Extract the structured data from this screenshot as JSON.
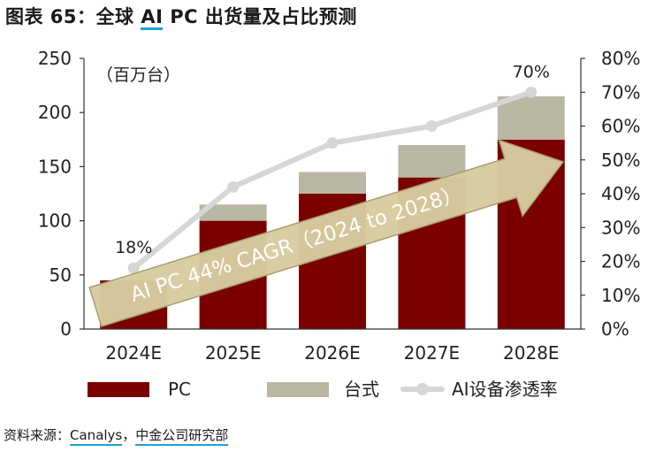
{
  "title": {
    "prefix": "图表 65：全球 ",
    "highlight": "AI",
    "suffix": " PC 出货量及占比预测"
  },
  "source": {
    "prefix": "资料来源：",
    "part1": "Canalys",
    "separator": "，",
    "part2": "中金公司研究部"
  },
  "chart_data": {
    "type": "bar",
    "categories": [
      "2024E",
      "2025E",
      "2026E",
      "2027E",
      "2028E"
    ],
    "series": [
      {
        "name": "PC",
        "type": "bar",
        "stack": "shipments",
        "axis": "left",
        "color": "#7b0000",
        "values": [
          45,
          100,
          125,
          140,
          175
        ]
      },
      {
        "name": "台式",
        "type": "bar",
        "stack": "shipments",
        "axis": "left",
        "color": "#b9b7a3",
        "values": [
          0,
          15,
          20,
          30,
          40
        ]
      },
      {
        "name": "AI设备渗透率",
        "type": "line",
        "axis": "right",
        "color": "#d6d6d6",
        "values": [
          18,
          42,
          55,
          60,
          70
        ]
      }
    ],
    "y_left": {
      "ylim": [
        0,
        250
      ],
      "ticks": [
        "0",
        "50",
        "100",
        "150",
        "200",
        "250"
      ],
      "unit_label": "（百万台）"
    },
    "y_right": {
      "ylim": [
        0,
        80
      ],
      "ticks": [
        "0%",
        "10%",
        "20%",
        "30%",
        "40%",
        "50%",
        "60%",
        "70%",
        "80%"
      ]
    },
    "point_labels": [
      {
        "index": 0,
        "text": "18%"
      },
      {
        "index": 4,
        "text": "70%"
      }
    ],
    "arrow_annotation": "AI PC 44% CAGR（2024 to 2028）",
    "legend": {
      "position": "bottom"
    },
    "grid": false
  },
  "colors": {
    "arrow_fill": "#d8cba0",
    "arrow_stroke": "#a89c72",
    "accent_underline": "#1ea0d6"
  }
}
